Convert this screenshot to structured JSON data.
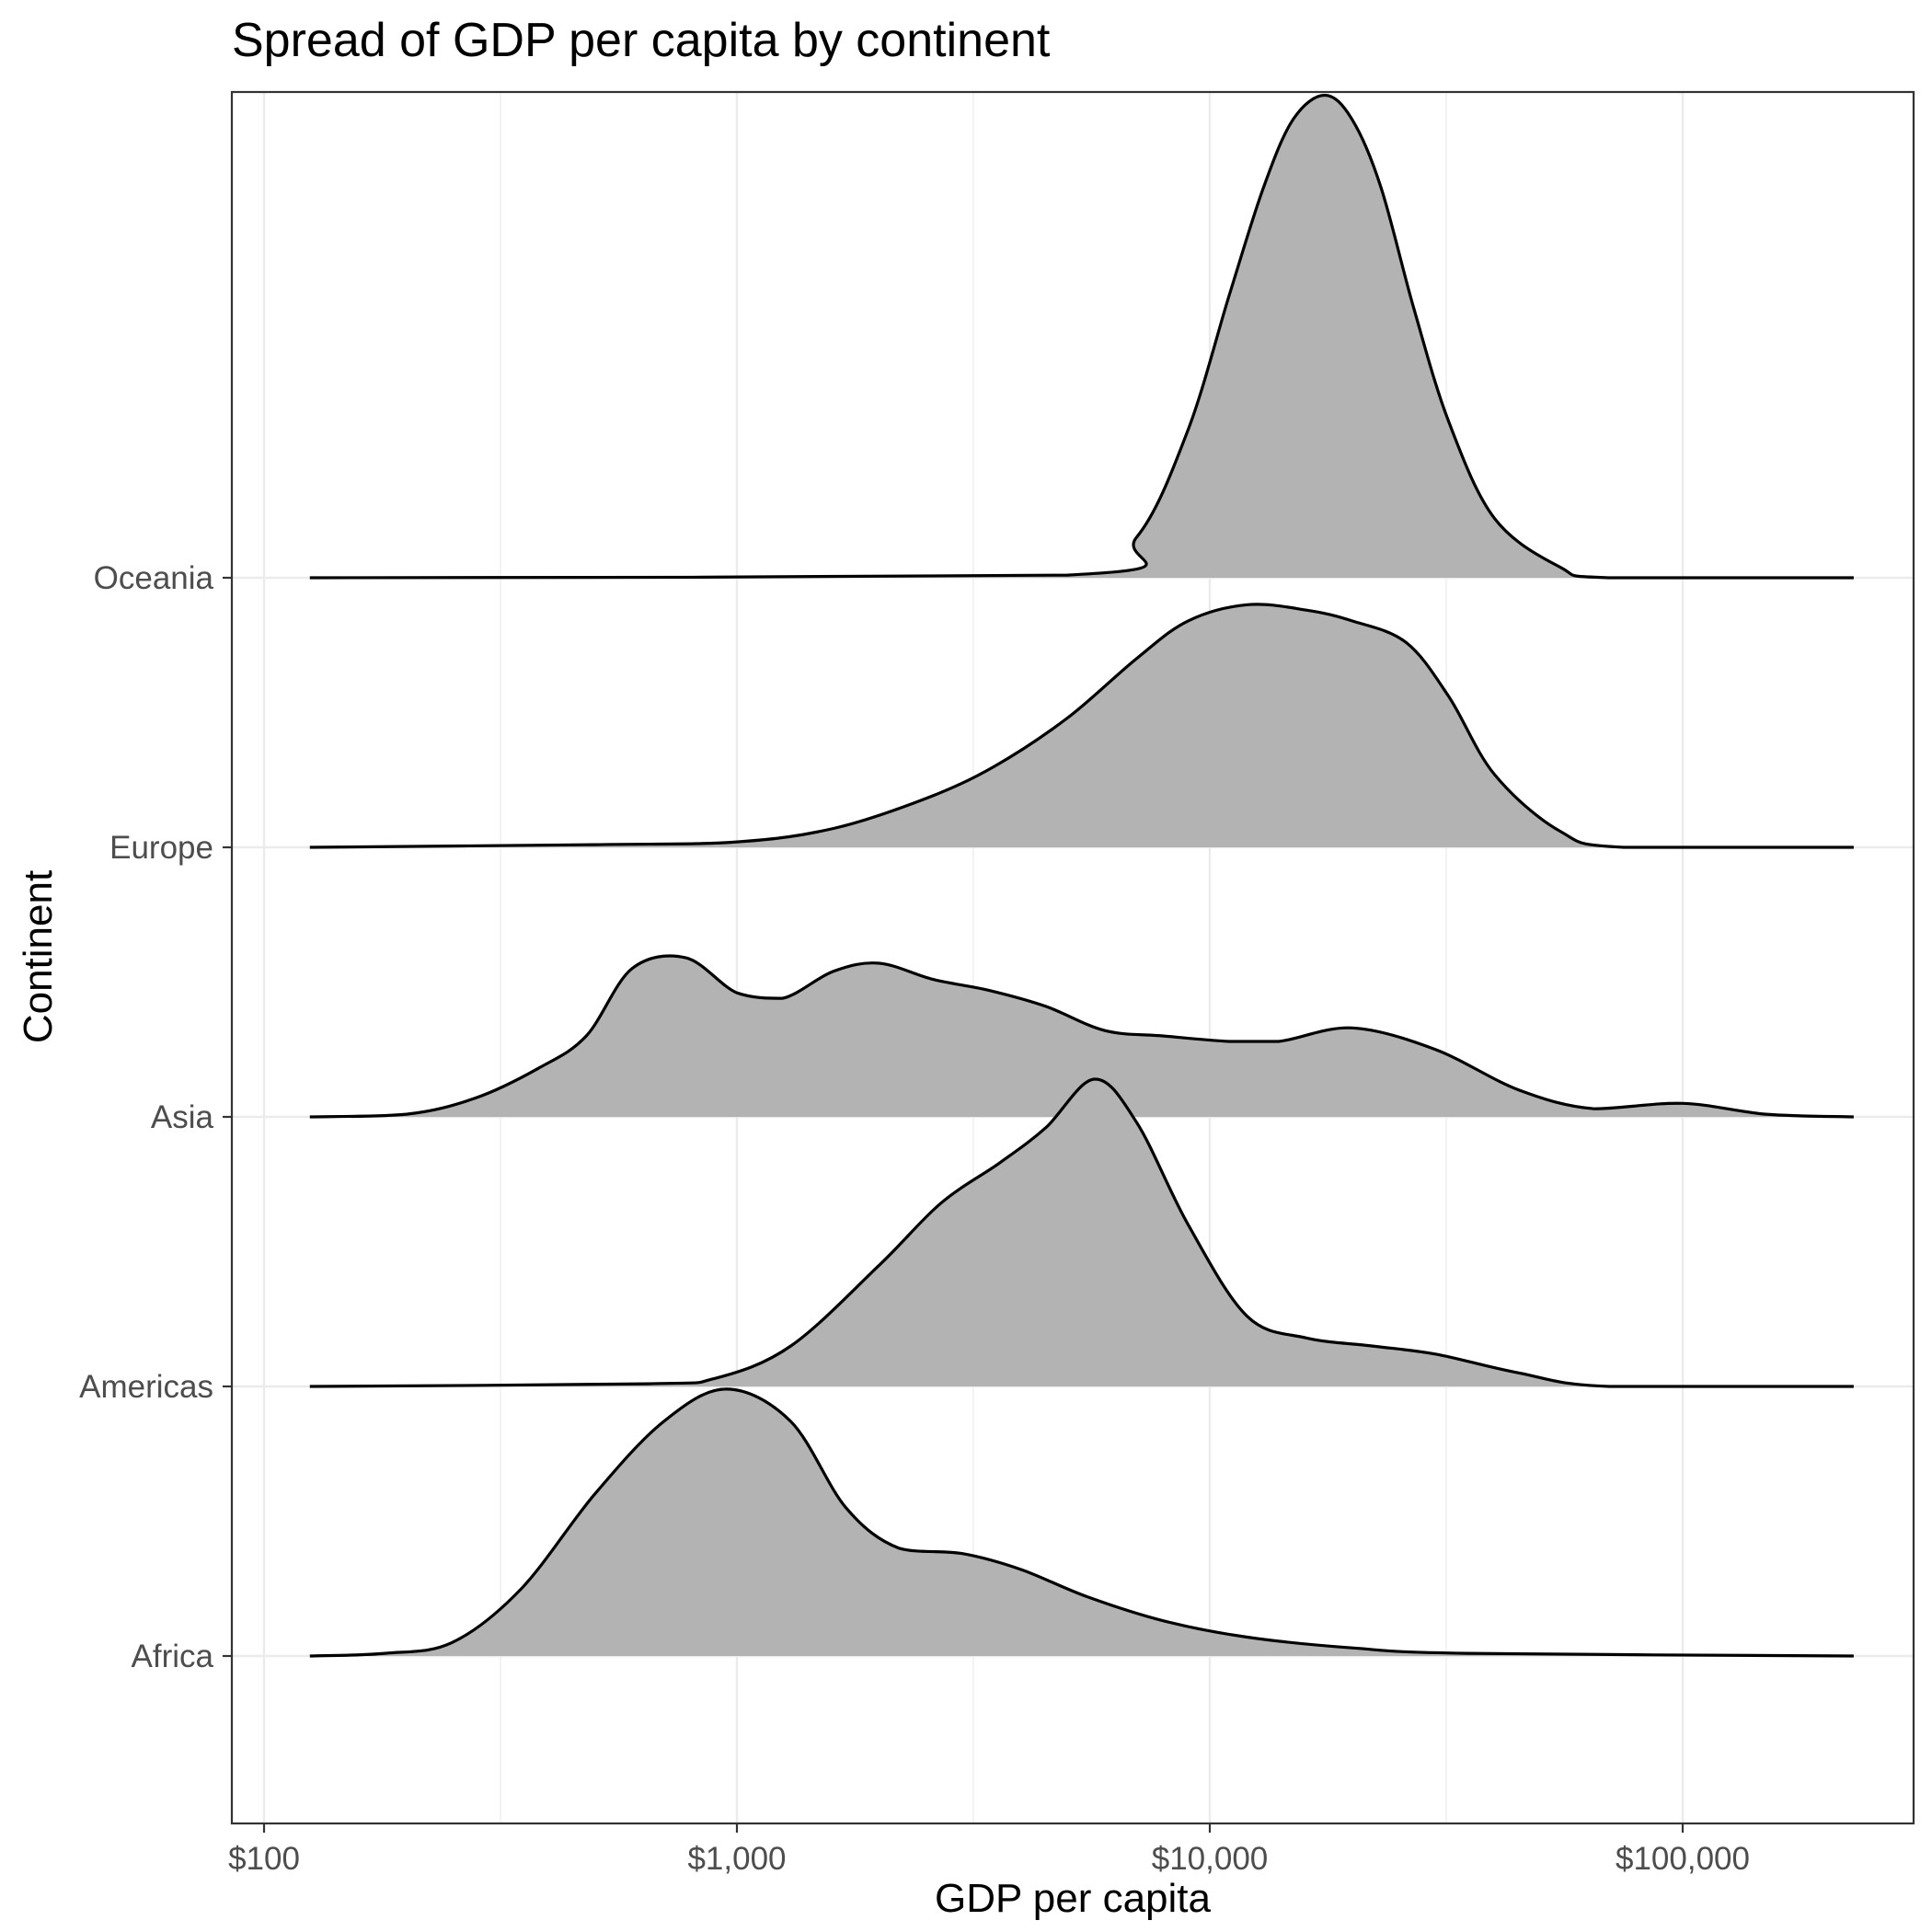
{
  "chart_data": {
    "type": "area",
    "subtype": "ridgeline-density",
    "title": "Spread of GDP per capita by continent",
    "xlabel": "GDP per capita",
    "ylabel": "Continent",
    "x_scale": "log10",
    "xlim": [
      85,
      300000
    ],
    "x_ticks": [
      100,
      1000,
      10000,
      100000
    ],
    "x_tick_labels": [
      "$100",
      "$1,000",
      "$10,000",
      "$100,000"
    ],
    "categories": [
      "Africa",
      "Americas",
      "Asia",
      "Europe",
      "Oceania"
    ],
    "grid": true,
    "fill_color": "#b3b3b3",
    "line_color": "#000000",
    "gridline_color": "#ebebeb",
    "density_scale_note": "relative density, 1.0 = height of one row spacing",
    "series": [
      {
        "name": "Africa",
        "x": [
          125,
          180,
          250,
          350,
          500,
          700,
          950,
          1300,
          1700,
          2200,
          3000,
          4000,
          5500,
          8000,
          12000,
          20000,
          35000,
          230000
        ],
        "values": [
          0,
          0.01,
          0.05,
          0.25,
          0.6,
          0.87,
          0.99,
          0.87,
          0.55,
          0.4,
          0.38,
          0.32,
          0.22,
          0.13,
          0.07,
          0.03,
          0.01,
          0
        ]
      },
      {
        "name": "Americas",
        "x": [
          125,
          650,
          900,
          1300,
          2000,
          2700,
          3600,
          4500,
          5700,
          7000,
          9000,
          12000,
          16000,
          22000,
          30000,
          45000,
          70000,
          230000
        ],
        "values": [
          0,
          0.01,
          0.03,
          0.15,
          0.45,
          0.68,
          0.83,
          0.96,
          1.14,
          0.98,
          0.6,
          0.26,
          0.18,
          0.15,
          0.12,
          0.05,
          0,
          0
        ]
      },
      {
        "name": "Asia",
        "x": [
          125,
          200,
          280,
          380,
          480,
          600,
          780,
          1000,
          1250,
          1600,
          2000,
          2600,
          3400,
          4500,
          6000,
          8000,
          11000,
          14000,
          20000,
          30000,
          45000,
          65000,
          100000,
          150000,
          230000
        ],
        "values": [
          0,
          0.01,
          0.07,
          0.18,
          0.3,
          0.55,
          0.59,
          0.46,
          0.44,
          0.54,
          0.57,
          0.51,
          0.47,
          0.41,
          0.32,
          0.3,
          0.28,
          0.28,
          0.33,
          0.25,
          0.1,
          0.03,
          0.05,
          0.01,
          0
        ]
      },
      {
        "name": "Europe",
        "x": [
          125,
          500,
          1000,
          1600,
          2500,
          3500,
          5000,
          7000,
          9000,
          12000,
          16000,
          20000,
          26000,
          32000,
          40000,
          55000,
          75000,
          230000
        ],
        "values": [
          0,
          0.01,
          0.02,
          0.07,
          0.18,
          0.3,
          0.48,
          0.7,
          0.84,
          0.9,
          0.88,
          0.84,
          0.76,
          0.56,
          0.27,
          0.06,
          0,
          0
        ]
      },
      {
        "name": "Oceania",
        "x": [
          125,
          5000,
          7000,
          9000,
          11000,
          13000,
          15000,
          17500,
          20000,
          23000,
          27000,
          32000,
          40000,
          55000,
          70000,
          230000
        ],
        "values": [
          0,
          0.01,
          0.15,
          0.55,
          1.05,
          1.45,
          1.7,
          1.79,
          1.7,
          1.45,
          1.0,
          0.58,
          0.22,
          0.04,
          0,
          0
        ]
      }
    ]
  }
}
